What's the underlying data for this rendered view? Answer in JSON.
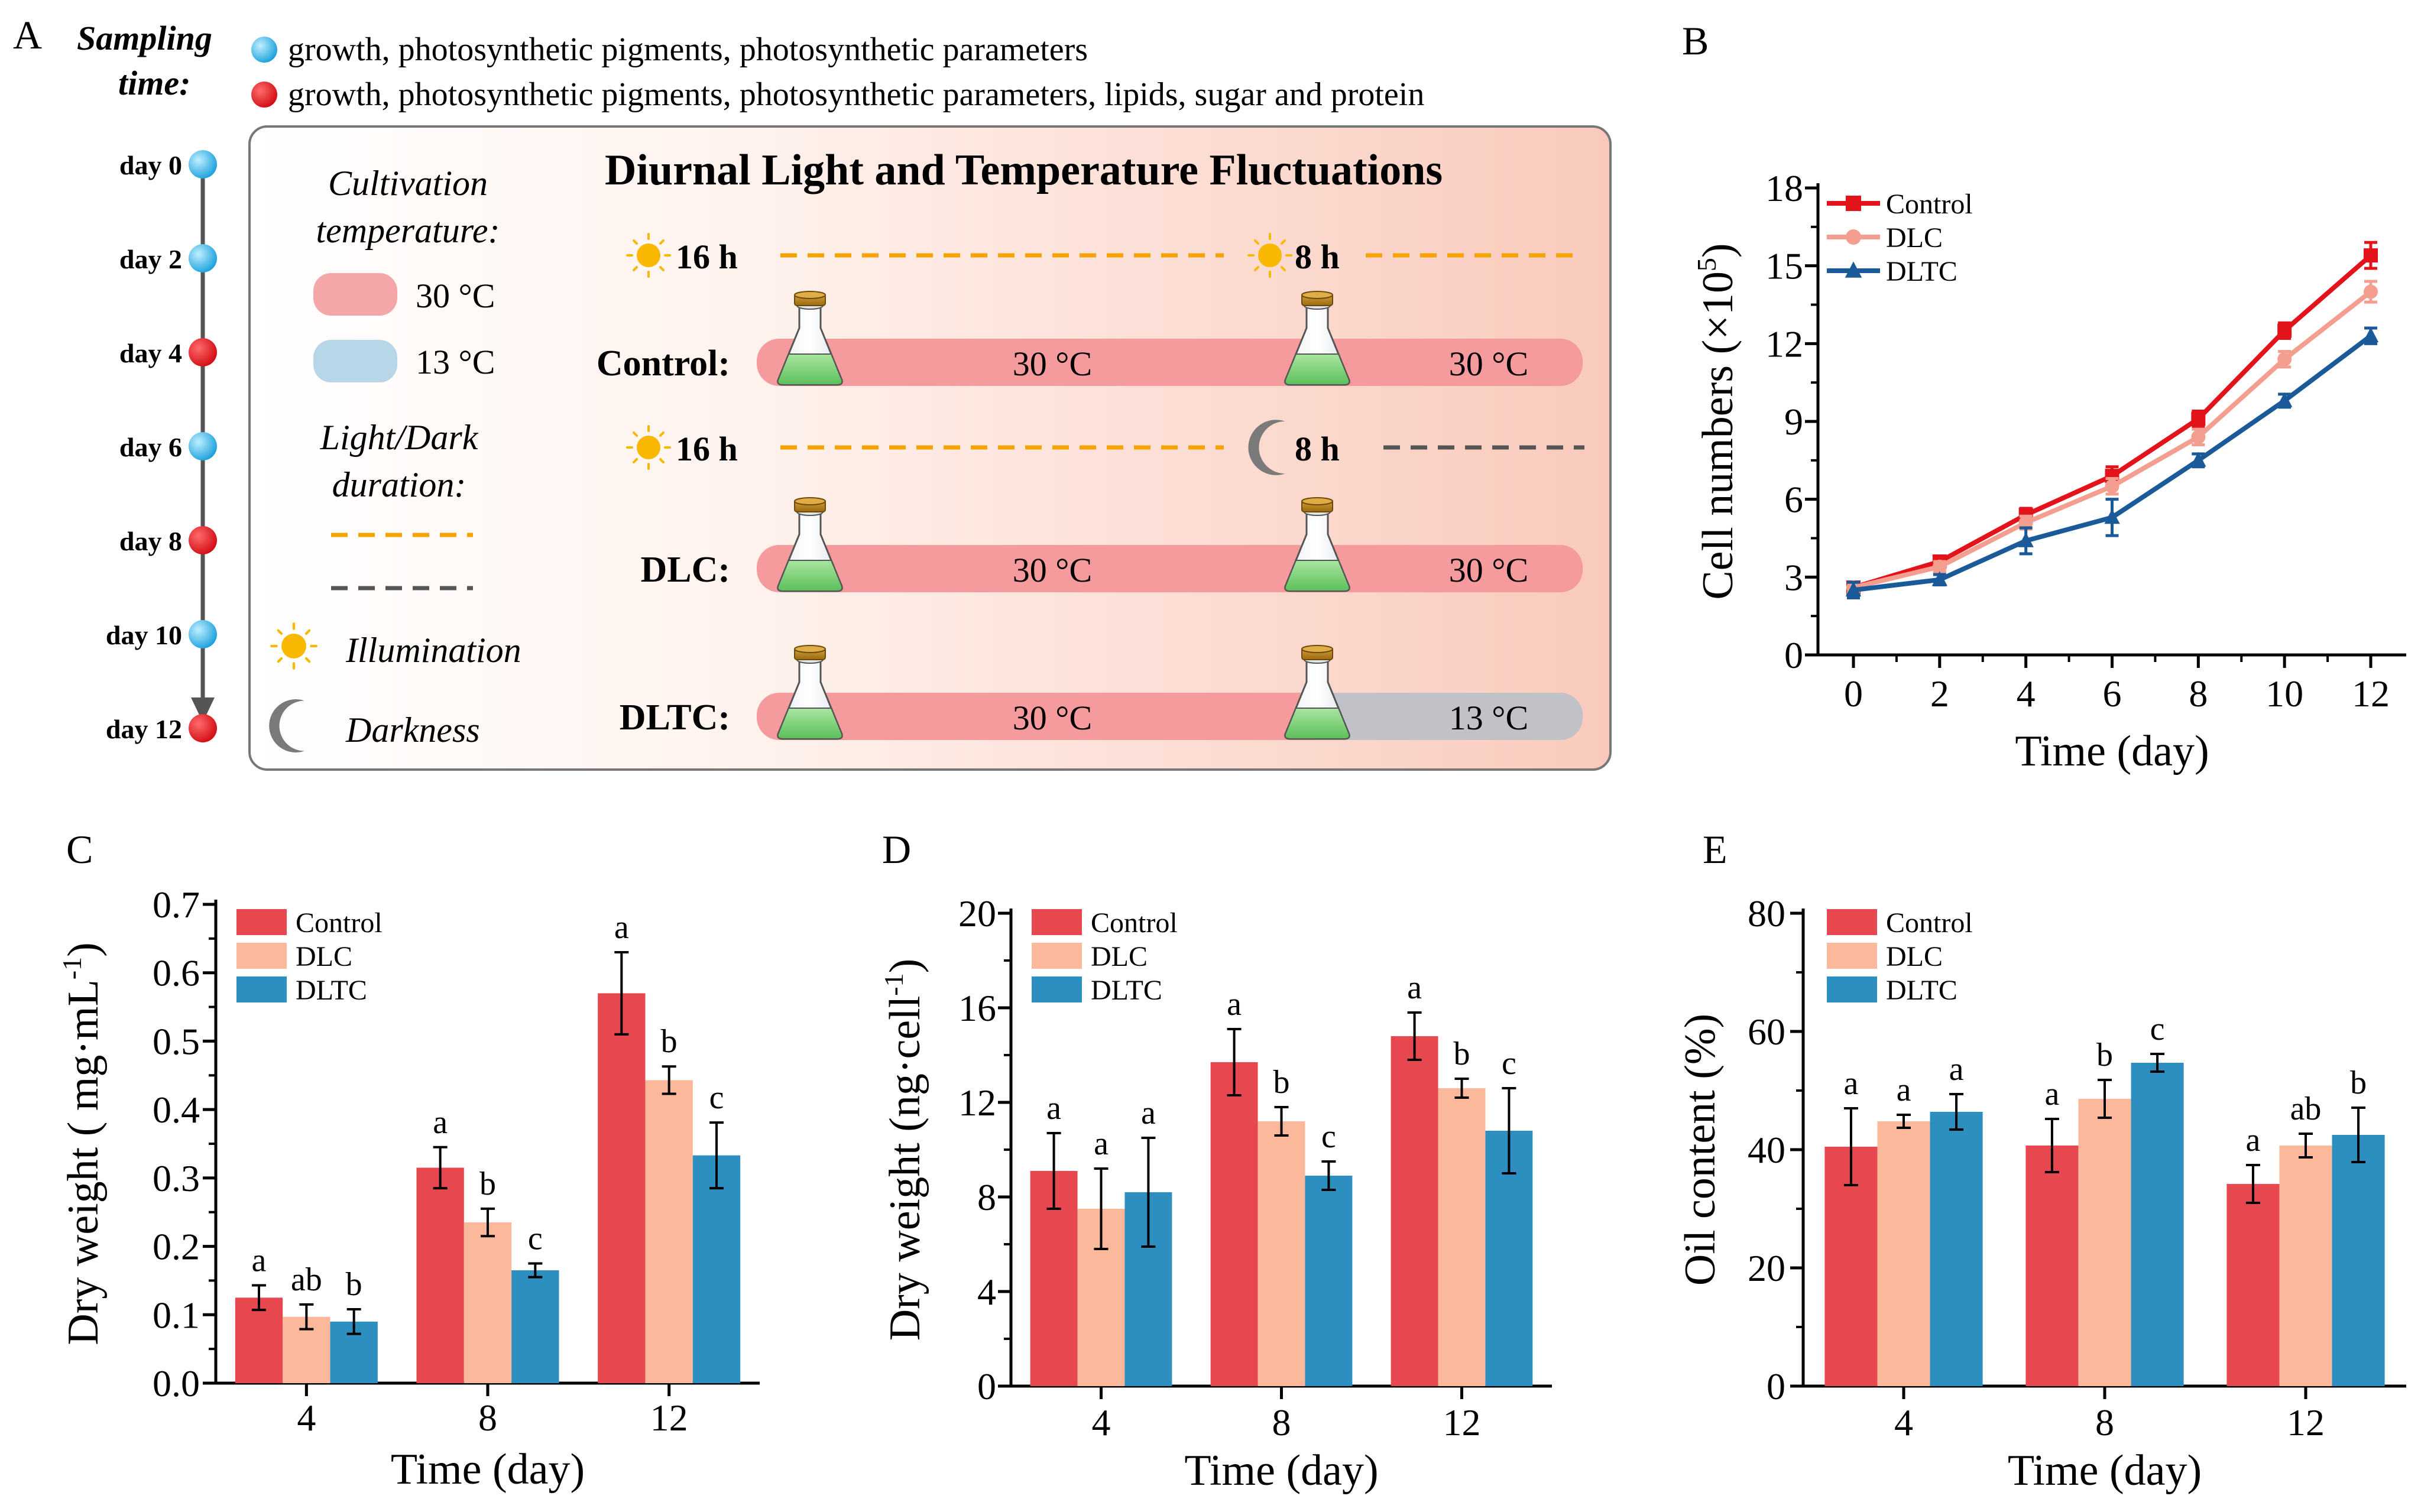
{
  "panel_a": {
    "letter": "A",
    "sampling_label": [
      "Sampling",
      "time:"
    ],
    "sampling_legend": [
      {
        "text": "growth, photosynthetic pigments, photosynthetic parameters",
        "color": "#27a9e1"
      },
      {
        "text": "growth, photosynthetic pigments, photosynthetic parameters, lipids, sugar and protein",
        "color": "#e3131b"
      }
    ],
    "timeline": [
      {
        "label": "day 0",
        "color": "#27a9e1"
      },
      {
        "label": "day 2",
        "color": "#27a9e1"
      },
      {
        "label": "day 4",
        "color": "#e3131b"
      },
      {
        "label": "day 6",
        "color": "#27a9e1"
      },
      {
        "label": "day 8",
        "color": "#e3131b"
      },
      {
        "label": "day 10",
        "color": "#27a9e1"
      },
      {
        "label": "day 12",
        "color": "#e3131b"
      }
    ],
    "schematic_title": "Diurnal Light and Temperature Fluctuations",
    "cultivation_label": [
      "Cultivation",
      "temperature:"
    ],
    "temp_legend": [
      {
        "label": "30 °C",
        "color": "#f5a6a8"
      },
      {
        "label": "13 °C",
        "color": "#b7d6e8"
      }
    ],
    "light_dark_label": [
      "Light/Dark",
      "duration:"
    ],
    "illumination_label": "Illumination",
    "darkness_label": "Darkness",
    "light_period": "16 h",
    "second_period": "8 h",
    "conditions": [
      {
        "name": "Control:",
        "t1": "30 °C",
        "t2": "30 °C",
        "second": "light"
      },
      {
        "name": "DLC:",
        "t1": "30 °C",
        "t2": "30 °C",
        "second": "dark"
      },
      {
        "name": "DLTC:",
        "t1": "30 °C",
        "t2": "13 °C",
        "second": "none"
      }
    ],
    "colors": {
      "light_dash": "#f5a300",
      "dark_dash": "#555555",
      "warm_bar": "#f59a9d",
      "cold_bar": "#c0c2c8",
      "sun": "#f8b800",
      "moon": "#7a7a7a"
    }
  },
  "chart_data": [
    {
      "panel": "B",
      "type": "line",
      "xlabel": "Time (day)",
      "ylabel": "Cell numbers (×10",
      "ylabel_sup": "5",
      "ylabel_end": ")",
      "x": [
        0,
        2,
        4,
        6,
        8,
        10,
        12
      ],
      "xticks": [
        "0",
        "2",
        "4",
        "6",
        "8",
        "10",
        "12"
      ],
      "ylim": [
        0,
        18
      ],
      "yticks": [
        "0",
        "3",
        "6",
        "9",
        "12",
        "15",
        "18"
      ],
      "series": [
        {
          "name": "Control",
          "color": "#e3131b",
          "marker": "square",
          "values": [
            2.6,
            3.6,
            5.4,
            6.9,
            9.1,
            12.5,
            15.4
          ],
          "errors": [
            0.2,
            0.2,
            0.25,
            0.35,
            0.3,
            0.3,
            0.5
          ]
        },
        {
          "name": "DLC",
          "color": "#f39e8e",
          "marker": "circle",
          "values": [
            2.6,
            3.4,
            5.1,
            6.5,
            8.4,
            11.4,
            14.0
          ],
          "errors": [
            0.2,
            0.2,
            0.25,
            0.3,
            0.3,
            0.3,
            0.4
          ]
        },
        {
          "name": "DLTC",
          "color": "#1b5a98",
          "marker": "triangle",
          "values": [
            2.5,
            2.9,
            4.4,
            5.3,
            7.5,
            9.8,
            12.3
          ],
          "errors": [
            0.3,
            0.2,
            0.5,
            0.7,
            0.25,
            0.25,
            0.3
          ]
        }
      ]
    },
    {
      "panel": "C",
      "type": "bar",
      "xlabel": "Time (day)",
      "ylabel": "Dry weight ( mg·mL",
      "ylabel_sup": "-1",
      "ylabel_end": ")",
      "categories": [
        "4",
        "8",
        "12"
      ],
      "ylim": [
        0,
        0.7
      ],
      "yticks": [
        "0.0",
        "0.1",
        "0.2",
        "0.3",
        "0.4",
        "0.5",
        "0.6",
        "0.7"
      ],
      "series": [
        {
          "name": "Control",
          "color": "#e7484f",
          "values": [
            0.125,
            0.315,
            0.57
          ],
          "errors": [
            0.018,
            0.03,
            0.06
          ],
          "letters": [
            "a",
            "a",
            "a"
          ]
        },
        {
          "name": "DLC",
          "color": "#fbb89a",
          "values": [
            0.097,
            0.235,
            0.443
          ],
          "errors": [
            0.018,
            0.02,
            0.02
          ],
          "letters": [
            "ab",
            "b",
            "b"
          ]
        },
        {
          "name": "DLTC",
          "color": "#2c8fc0",
          "values": [
            0.09,
            0.165,
            0.333
          ],
          "errors": [
            0.018,
            0.01,
            0.048
          ],
          "letters": [
            "b",
            "c",
            "c"
          ]
        }
      ]
    },
    {
      "panel": "D",
      "type": "bar",
      "xlabel": "Time (day)",
      "ylabel": "Dry weight (ng·cell",
      "ylabel_sup": "-1",
      "ylabel_end": ")",
      "categories": [
        "4",
        "8",
        "12"
      ],
      "ylim": [
        0,
        20
      ],
      "yticks": [
        "0",
        "4",
        "8",
        "12",
        "16",
        "20"
      ],
      "series": [
        {
          "name": "Control",
          "color": "#e7484f",
          "values": [
            9.1,
            13.7,
            14.8
          ],
          "errors": [
            1.6,
            1.4,
            1.0
          ],
          "letters": [
            "a",
            "a",
            "a"
          ]
        },
        {
          "name": "DLC",
          "color": "#fbb89a",
          "values": [
            7.5,
            11.2,
            12.6
          ],
          "errors": [
            1.7,
            0.6,
            0.4
          ],
          "letters": [
            "a",
            "b",
            "b"
          ]
        },
        {
          "name": "DLTC",
          "color": "#2c8fc0",
          "values": [
            8.2,
            8.9,
            10.8
          ],
          "errors": [
            2.3,
            0.6,
            1.8
          ],
          "letters": [
            "a",
            "c",
            "c"
          ]
        }
      ]
    },
    {
      "panel": "E",
      "type": "bar",
      "xlabel": "Time (day)",
      "ylabel": "Oil content (%)",
      "ylabel_sup": "",
      "ylabel_end": "",
      "categories": [
        "4",
        "8",
        "12"
      ],
      "ylim": [
        0,
        80
      ],
      "yticks": [
        "0",
        "20",
        "40",
        "60",
        "80"
      ],
      "series": [
        {
          "name": "Control",
          "color": "#e7484f",
          "values": [
            40.5,
            40.7,
            34.2
          ],
          "errors": [
            6.5,
            4.5,
            3.2
          ],
          "letters": [
            "a",
            "a",
            "a"
          ]
        },
        {
          "name": "DLC",
          "color": "#fbb89a",
          "values": [
            44.8,
            48.6,
            40.7
          ],
          "errors": [
            1.1,
            3.2,
            2.0
          ],
          "letters": [
            "a",
            "b",
            "ab"
          ]
        },
        {
          "name": "DLTC",
          "color": "#2c8fc0",
          "values": [
            46.4,
            54.7,
            42.5
          ],
          "errors": [
            3.0,
            1.5,
            4.6
          ],
          "letters": [
            "a",
            "c",
            "b"
          ]
        }
      ]
    }
  ]
}
